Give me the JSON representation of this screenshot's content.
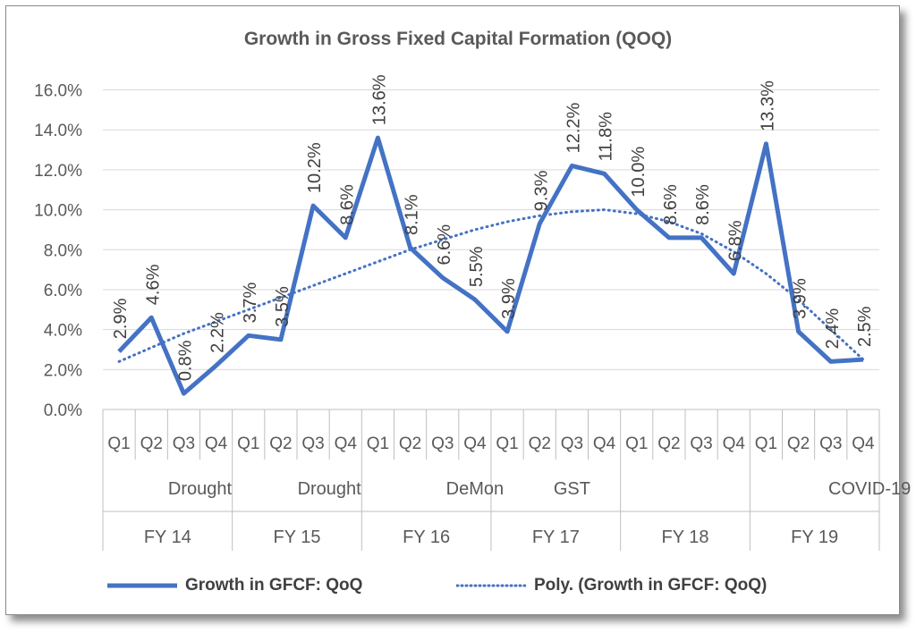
{
  "chart_data": {
    "type": "line",
    "title": "Growth in Gross Fixed Capital Formation (QOQ)",
    "xlabel": "",
    "ylabel": "",
    "ylim": [
      0,
      16
    ],
    "yticks": [
      "0.0%",
      "2.0%",
      "4.0%",
      "6.0%",
      "8.0%",
      "10.0%",
      "12.0%",
      "14.0%",
      "16.0%"
    ],
    "grid": true,
    "categories": [
      "Q1",
      "Q2",
      "Q3",
      "Q4",
      "Q1",
      "Q2",
      "Q3",
      "Q4",
      "Q1",
      "Q2",
      "Q3",
      "Q4",
      "Q1",
      "Q2",
      "Q3",
      "Q4",
      "Q1",
      "Q2",
      "Q3",
      "Q4",
      "Q1",
      "Q2",
      "Q3",
      "Q4"
    ],
    "fiscal_years": [
      "FY 14",
      "FY 15",
      "FY 16",
      "FY 17",
      "FY 18",
      "FY 19"
    ],
    "events": [
      {
        "label": "Drought",
        "quarter_index": 2.5
      },
      {
        "label": "Drought",
        "quarter_index": 6.5
      },
      {
        "label": "DeMon",
        "quarter_index": 11
      },
      {
        "label": "GST",
        "quarter_index": 14
      },
      {
        "label": "COVID-19",
        "quarter_index": 23.2
      }
    ],
    "series": [
      {
        "name": "Growth in GFCF: QoQ",
        "color": "#4472C4",
        "values": [
          2.9,
          4.6,
          0.8,
          2.2,
          3.7,
          3.5,
          10.2,
          8.6,
          13.6,
          8.1,
          6.6,
          5.5,
          3.9,
          9.3,
          12.2,
          11.8,
          10.0,
          8.6,
          8.6,
          6.8,
          13.3,
          3.9,
          2.4,
          2.5
        ],
        "labels": [
          "2.9%",
          "4.6%",
          "0.8%",
          "2.2%",
          "3.7%",
          "3.5%",
          "10.2%",
          "8.6%",
          "13.6%",
          "8.1%",
          "6.6%",
          "5.5%",
          "3.9%",
          "9.3%",
          "12.2%",
          "11.8%",
          "10.0%",
          "8.6%",
          "8.6%",
          "6.8%",
          "13.3%",
          "3.9%",
          "2.4%",
          "2.5%"
        ]
      },
      {
        "name": "Poly. (Growth in GFCF: QoQ)",
        "color": "#4472C4",
        "style": "dotted",
        "values": [
          2.4,
          3.1,
          3.8,
          4.4,
          5.0,
          5.6,
          6.2,
          6.8,
          7.4,
          8.0,
          8.5,
          9.0,
          9.4,
          9.7,
          9.9,
          10.0,
          9.8,
          9.4,
          8.8,
          7.9,
          6.8,
          5.5,
          4.0,
          2.5
        ]
      }
    ],
    "legend": "bottom"
  }
}
